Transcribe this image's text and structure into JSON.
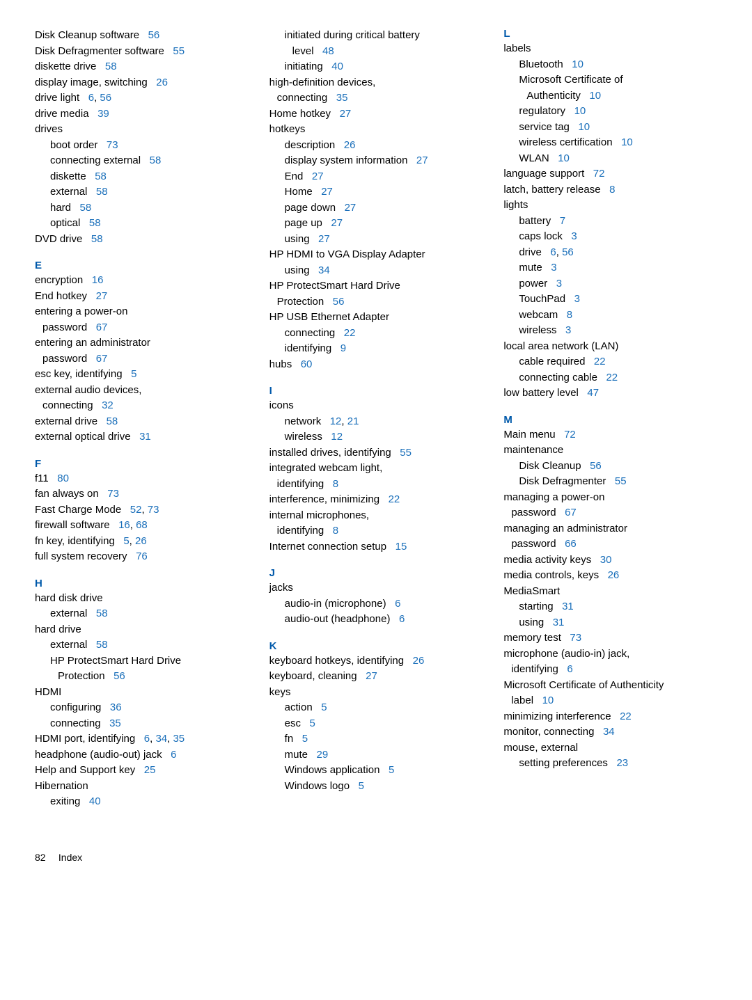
{
  "footer": {
    "page": "82",
    "label": "Index"
  },
  "columns": [
    [
      {
        "t": "Disk Cleanup software",
        "p": [
          "56"
        ]
      },
      {
        "t": "Disk Defragmenter software",
        "p": [
          "55"
        ]
      },
      {
        "t": "diskette drive",
        "p": [
          "58"
        ]
      },
      {
        "t": "display image, switching",
        "p": [
          "26"
        ]
      },
      {
        "t": "drive light",
        "p": [
          "6",
          "56"
        ]
      },
      {
        "t": "drive media",
        "p": [
          "39"
        ]
      },
      {
        "t": "drives"
      },
      {
        "t": "boot order",
        "p": [
          "73"
        ],
        "cls": "sub"
      },
      {
        "t": "connecting external",
        "p": [
          "58"
        ],
        "cls": "sub"
      },
      {
        "t": "diskette",
        "p": [
          "58"
        ],
        "cls": "sub"
      },
      {
        "t": "external",
        "p": [
          "58"
        ],
        "cls": "sub"
      },
      {
        "t": "hard",
        "p": [
          "58"
        ],
        "cls": "sub"
      },
      {
        "t": "optical",
        "p": [
          "58"
        ],
        "cls": "sub"
      },
      {
        "t": "DVD drive",
        "p": [
          "58"
        ]
      },
      {
        "letter": "E"
      },
      {
        "t": "encryption",
        "p": [
          "16"
        ]
      },
      {
        "t": "End hotkey",
        "p": [
          "27"
        ]
      },
      {
        "t": "entering a power-on"
      },
      {
        "t": "password",
        "p": [
          "67"
        ],
        "cls": "cont"
      },
      {
        "t": "entering an administrator"
      },
      {
        "t": "password",
        "p": [
          "67"
        ],
        "cls": "cont"
      },
      {
        "t": "esc key, identifying",
        "p": [
          "5"
        ]
      },
      {
        "t": "external audio devices,"
      },
      {
        "t": "connecting",
        "p": [
          "32"
        ],
        "cls": "cont"
      },
      {
        "t": "external drive",
        "p": [
          "58"
        ]
      },
      {
        "t": "external optical drive",
        "p": [
          "31"
        ]
      },
      {
        "letter": "F"
      },
      {
        "t": "f11",
        "p": [
          "80"
        ]
      },
      {
        "t": "fan always on",
        "p": [
          "73"
        ]
      },
      {
        "t": "Fast Charge Mode",
        "p": [
          "52",
          "73"
        ]
      },
      {
        "t": "firewall software",
        "p": [
          "16",
          "68"
        ]
      },
      {
        "t": "fn key, identifying",
        "p": [
          "5",
          "26"
        ]
      },
      {
        "t": "full system recovery",
        "p": [
          "76"
        ]
      },
      {
        "letter": "H"
      },
      {
        "t": "hard disk drive"
      },
      {
        "t": "external",
        "p": [
          "58"
        ],
        "cls": "sub"
      },
      {
        "t": "hard drive"
      },
      {
        "t": "external",
        "p": [
          "58"
        ],
        "cls": "sub"
      },
      {
        "t": "HP ProtectSmart Hard Drive",
        "cls": "sub"
      },
      {
        "t": "Protection",
        "p": [
          "56"
        ],
        "cls": "sub",
        "extraIndent": true
      },
      {
        "t": "HDMI"
      },
      {
        "t": "configuring",
        "p": [
          "36"
        ],
        "cls": "sub"
      },
      {
        "t": "connecting",
        "p": [
          "35"
        ],
        "cls": "sub"
      },
      {
        "t": "HDMI port, identifying",
        "p": [
          "6",
          "34",
          "35"
        ]
      },
      {
        "t": "headphone (audio-out) jack",
        "p": [
          "6"
        ]
      },
      {
        "t": "Help and Support key",
        "p": [
          "25"
        ]
      },
      {
        "t": "Hibernation"
      },
      {
        "t": "exiting",
        "p": [
          "40"
        ],
        "cls": "sub"
      }
    ],
    [
      {
        "t": "initiated during critical battery",
        "cls": "sub"
      },
      {
        "t": "level",
        "p": [
          "48"
        ],
        "cls": "sub",
        "extraIndent": true
      },
      {
        "t": "initiating",
        "p": [
          "40"
        ],
        "cls": "sub"
      },
      {
        "t": "high-definition devices,"
      },
      {
        "t": "connecting",
        "p": [
          "35"
        ],
        "cls": "cont"
      },
      {
        "t": "Home hotkey",
        "p": [
          "27"
        ]
      },
      {
        "t": "hotkeys"
      },
      {
        "t": "description",
        "p": [
          "26"
        ],
        "cls": "sub"
      },
      {
        "t": "display system information",
        "p": [
          "27"
        ],
        "cls": "sub"
      },
      {
        "t": "End",
        "p": [
          "27"
        ],
        "cls": "sub"
      },
      {
        "t": "Home",
        "p": [
          "27"
        ],
        "cls": "sub"
      },
      {
        "t": "page down",
        "p": [
          "27"
        ],
        "cls": "sub"
      },
      {
        "t": "page up",
        "p": [
          "27"
        ],
        "cls": "sub"
      },
      {
        "t": "using",
        "p": [
          "27"
        ],
        "cls": "sub"
      },
      {
        "t": "HP HDMI to VGA Display Adapter"
      },
      {
        "t": "using",
        "p": [
          "34"
        ],
        "cls": "sub"
      },
      {
        "t": "HP ProtectSmart Hard Drive"
      },
      {
        "t": "Protection",
        "p": [
          "56"
        ],
        "cls": "cont"
      },
      {
        "t": "HP USB Ethernet Adapter"
      },
      {
        "t": "connecting",
        "p": [
          "22"
        ],
        "cls": "sub"
      },
      {
        "t": "identifying",
        "p": [
          "9"
        ],
        "cls": "sub"
      },
      {
        "t": "hubs",
        "p": [
          "60"
        ]
      },
      {
        "letter": "I"
      },
      {
        "t": "icons"
      },
      {
        "t": "network",
        "p": [
          "12",
          "21"
        ],
        "cls": "sub"
      },
      {
        "t": "wireless",
        "p": [
          "12"
        ],
        "cls": "sub"
      },
      {
        "t": "installed drives, identifying",
        "p": [
          "55"
        ]
      },
      {
        "t": "integrated webcam light,"
      },
      {
        "t": "identifying",
        "p": [
          "8"
        ],
        "cls": "cont"
      },
      {
        "t": "interference, minimizing",
        "p": [
          "22"
        ]
      },
      {
        "t": "internal microphones,"
      },
      {
        "t": "identifying",
        "p": [
          "8"
        ],
        "cls": "cont"
      },
      {
        "t": "Internet connection setup",
        "p": [
          "15"
        ]
      },
      {
        "letter": "J"
      },
      {
        "t": "jacks"
      },
      {
        "t": "audio-in (microphone)",
        "p": [
          "6"
        ],
        "cls": "sub"
      },
      {
        "t": "audio-out (headphone)",
        "p": [
          "6"
        ],
        "cls": "sub"
      },
      {
        "letter": "K"
      },
      {
        "t": "keyboard hotkeys, identifying",
        "p": [
          "26"
        ]
      },
      {
        "t": "keyboard, cleaning",
        "p": [
          "27"
        ]
      },
      {
        "t": "keys"
      },
      {
        "t": "action",
        "p": [
          "5"
        ],
        "cls": "sub"
      },
      {
        "t": "esc",
        "p": [
          "5"
        ],
        "cls": "sub"
      },
      {
        "t": "fn",
        "p": [
          "5"
        ],
        "cls": "sub"
      },
      {
        "t": "mute",
        "p": [
          "29"
        ],
        "cls": "sub"
      },
      {
        "t": "Windows application",
        "p": [
          "5"
        ],
        "cls": "sub"
      },
      {
        "t": "Windows logo",
        "p": [
          "5"
        ],
        "cls": "sub"
      }
    ],
    [
      {
        "letter": "L"
      },
      {
        "t": "labels"
      },
      {
        "t": "Bluetooth",
        "p": [
          "10"
        ],
        "cls": "sub"
      },
      {
        "t": "Microsoft Certificate of",
        "cls": "sub"
      },
      {
        "t": "Authenticity",
        "p": [
          "10"
        ],
        "cls": "sub",
        "extraIndent": true
      },
      {
        "t": "regulatory",
        "p": [
          "10"
        ],
        "cls": "sub"
      },
      {
        "t": "service tag",
        "p": [
          "10"
        ],
        "cls": "sub"
      },
      {
        "t": "wireless certification",
        "p": [
          "10"
        ],
        "cls": "sub"
      },
      {
        "t": "WLAN",
        "p": [
          "10"
        ],
        "cls": "sub"
      },
      {
        "t": "language support",
        "p": [
          "72"
        ]
      },
      {
        "t": "latch, battery release",
        "p": [
          "8"
        ]
      },
      {
        "t": "lights"
      },
      {
        "t": "battery",
        "p": [
          "7"
        ],
        "cls": "sub"
      },
      {
        "t": "caps lock",
        "p": [
          "3"
        ],
        "cls": "sub"
      },
      {
        "t": "drive",
        "p": [
          "6",
          "56"
        ],
        "cls": "sub"
      },
      {
        "t": "mute",
        "p": [
          "3"
        ],
        "cls": "sub"
      },
      {
        "t": "power",
        "p": [
          "3"
        ],
        "cls": "sub"
      },
      {
        "t": "TouchPad",
        "p": [
          "3"
        ],
        "cls": "sub"
      },
      {
        "t": "webcam",
        "p": [
          "8"
        ],
        "cls": "sub"
      },
      {
        "t": "wireless",
        "p": [
          "3"
        ],
        "cls": "sub"
      },
      {
        "t": "local area network (LAN)"
      },
      {
        "t": "cable required",
        "p": [
          "22"
        ],
        "cls": "sub"
      },
      {
        "t": "connecting cable",
        "p": [
          "22"
        ],
        "cls": "sub"
      },
      {
        "t": "low battery level",
        "p": [
          "47"
        ]
      },
      {
        "letter": "M"
      },
      {
        "t": "Main menu",
        "p": [
          "72"
        ]
      },
      {
        "t": "maintenance"
      },
      {
        "t": "Disk Cleanup",
        "p": [
          "56"
        ],
        "cls": "sub"
      },
      {
        "t": "Disk Defragmenter",
        "p": [
          "55"
        ],
        "cls": "sub"
      },
      {
        "t": "managing a power-on"
      },
      {
        "t": "password",
        "p": [
          "67"
        ],
        "cls": "cont"
      },
      {
        "t": "managing an administrator"
      },
      {
        "t": "password",
        "p": [
          "66"
        ],
        "cls": "cont"
      },
      {
        "t": "media activity keys",
        "p": [
          "30"
        ]
      },
      {
        "t": "media controls, keys",
        "p": [
          "26"
        ]
      },
      {
        "t": "MediaSmart"
      },
      {
        "t": "starting",
        "p": [
          "31"
        ],
        "cls": "sub"
      },
      {
        "t": "using",
        "p": [
          "31"
        ],
        "cls": "sub"
      },
      {
        "t": "memory test",
        "p": [
          "73"
        ]
      },
      {
        "t": "microphone (audio-in) jack,"
      },
      {
        "t": "identifying",
        "p": [
          "6"
        ],
        "cls": "cont"
      },
      {
        "t": "Microsoft Certificate of Authenticity"
      },
      {
        "t": "label",
        "p": [
          "10"
        ],
        "cls": "cont"
      },
      {
        "t": "minimizing interference",
        "p": [
          "22"
        ]
      },
      {
        "t": "monitor, connecting",
        "p": [
          "34"
        ]
      },
      {
        "t": "mouse, external"
      },
      {
        "t": "setting preferences",
        "p": [
          "23"
        ],
        "cls": "sub"
      }
    ]
  ]
}
